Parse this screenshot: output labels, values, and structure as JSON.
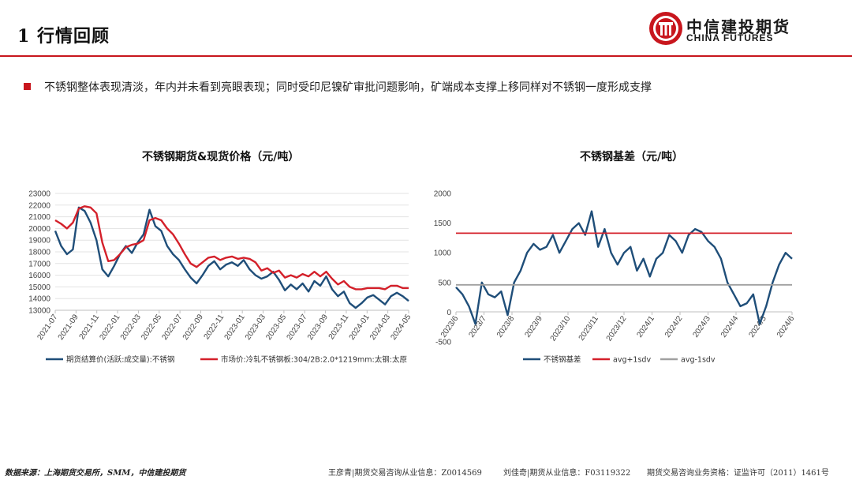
{
  "header": {
    "title": "1  行情回顾",
    "logo_cn": "中信建投期货",
    "logo_en": "CHINA FUTURES",
    "accent_color": "#c8161d"
  },
  "bullet": {
    "text": "不锈钢整体表现清淡，年内并未看到亮眼表现；同时受印尼镍矿审批问题影响，矿端成本支撑上移同样对不锈钢一度形成支撑"
  },
  "footer": {
    "source": "数据来源：上海期货交易所，SMM，中信建投期货",
    "analyst1": "王彦青|期货交易咨询从业信息：Z0014569",
    "analyst2": "刘佳奇|期货从业信息：F03119322",
    "license": "期货交易咨询业务资格：证监许可（2011）1461号"
  },
  "chart_data": [
    {
      "type": "line",
      "title": "不锈钢期货&现货价格（元/吨）",
      "ylim": [
        13000,
        23000
      ],
      "yticks": [
        13000,
        14000,
        15000,
        16000,
        17000,
        18000,
        19000,
        20000,
        21000,
        22000,
        23000
      ],
      "xticks": [
        "2021-07",
        "2021-09",
        "2021-11",
        "2022-01",
        "2022-03",
        "2022-05",
        "2022-07",
        "2022-09",
        "2022-11",
        "2023-01",
        "2023-03",
        "2023-05",
        "2023-07",
        "2023-09",
        "2023-11",
        "2024-01",
        "2024-03",
        "2024-05"
      ],
      "grid": true,
      "legend_position": "bottom",
      "series": [
        {
          "name": "期货结算价(活跃:成交量):不锈钢",
          "color": "#1f4e79",
          "values": [
            19800,
            18500,
            17800,
            18200,
            21800,
            21500,
            20500,
            19000,
            16500,
            15900,
            16800,
            17800,
            18500,
            17900,
            18800,
            19500,
            21600,
            20200,
            19800,
            18500,
            17800,
            17300,
            16500,
            15800,
            15300,
            16000,
            16800,
            17200,
            16500,
            16900,
            17100,
            16800,
            17300,
            16500,
            16000,
            15700,
            15900,
            16300,
            15600,
            14700,
            15200,
            14800,
            15300,
            14600,
            15500,
            15100,
            15900,
            14800,
            14200,
            14600,
            13600,
            13200,
            13600,
            14100,
            14300,
            13900,
            13500,
            14200,
            14500,
            14200,
            13800
          ]
        },
        {
          "name": "市场价:冷轧不锈钢板:304/2B:2.0*1219mm:太钢:太原",
          "color": "#d4202a",
          "values": [
            20700,
            20400,
            20000,
            20500,
            21700,
            21900,
            21800,
            21300,
            18800,
            17200,
            17300,
            17800,
            18400,
            18600,
            18700,
            19000,
            20700,
            20900,
            20700,
            20000,
            19500,
            18700,
            17800,
            17000,
            16700,
            17100,
            17500,
            17600,
            17300,
            17500,
            17600,
            17400,
            17500,
            17400,
            17100,
            16400,
            16600,
            16200,
            16400,
            15800,
            16000,
            15800,
            16100,
            15900,
            16300,
            15900,
            16300,
            15700,
            15200,
            15500,
            15000,
            14800,
            14800,
            14900,
            14900,
            14900,
            14800,
            15100,
            15100,
            14900,
            14900
          ]
        }
      ]
    },
    {
      "type": "line",
      "title": "不锈钢基差（元/吨）",
      "ylim": [
        -500,
        2000
      ],
      "yticks": [
        -500,
        0,
        500,
        1000,
        1500,
        2000
      ],
      "xticks": [
        "2023/6",
        "2023/7",
        "2023/8",
        "2023/9",
        "2023/10",
        "2023/11",
        "2023/12",
        "2024/1",
        "2024/2",
        "2024/3",
        "2024/4",
        "2024/5",
        "2024/6"
      ],
      "grid": false,
      "legend_position": "bottom",
      "series": [
        {
          "name": "不锈钢基差",
          "color": "#1f4e79",
          "values": [
            420,
            300,
            100,
            -200,
            500,
            300,
            250,
            350,
            -50,
            500,
            700,
            1000,
            1150,
            1050,
            1100,
            1300,
            1000,
            1200,
            1400,
            1500,
            1300,
            1700,
            1100,
            1400,
            1000,
            800,
            1000,
            1100,
            700,
            900,
            600,
            900,
            1000,
            1300,
            1200,
            1000,
            1300,
            1400,
            1350,
            1200,
            1100,
            900,
            500,
            300,
            100,
            150,
            300,
            -200,
            100,
            500,
            800,
            1000,
            900
          ]
        },
        {
          "name": "avg+1sdv",
          "color": "#d4202a",
          "values": [
            1330,
            1330
          ]
        },
        {
          "name": "avg-1sdv",
          "color": "#a0a0a0",
          "values": [
            460,
            460
          ]
        }
      ]
    }
  ]
}
